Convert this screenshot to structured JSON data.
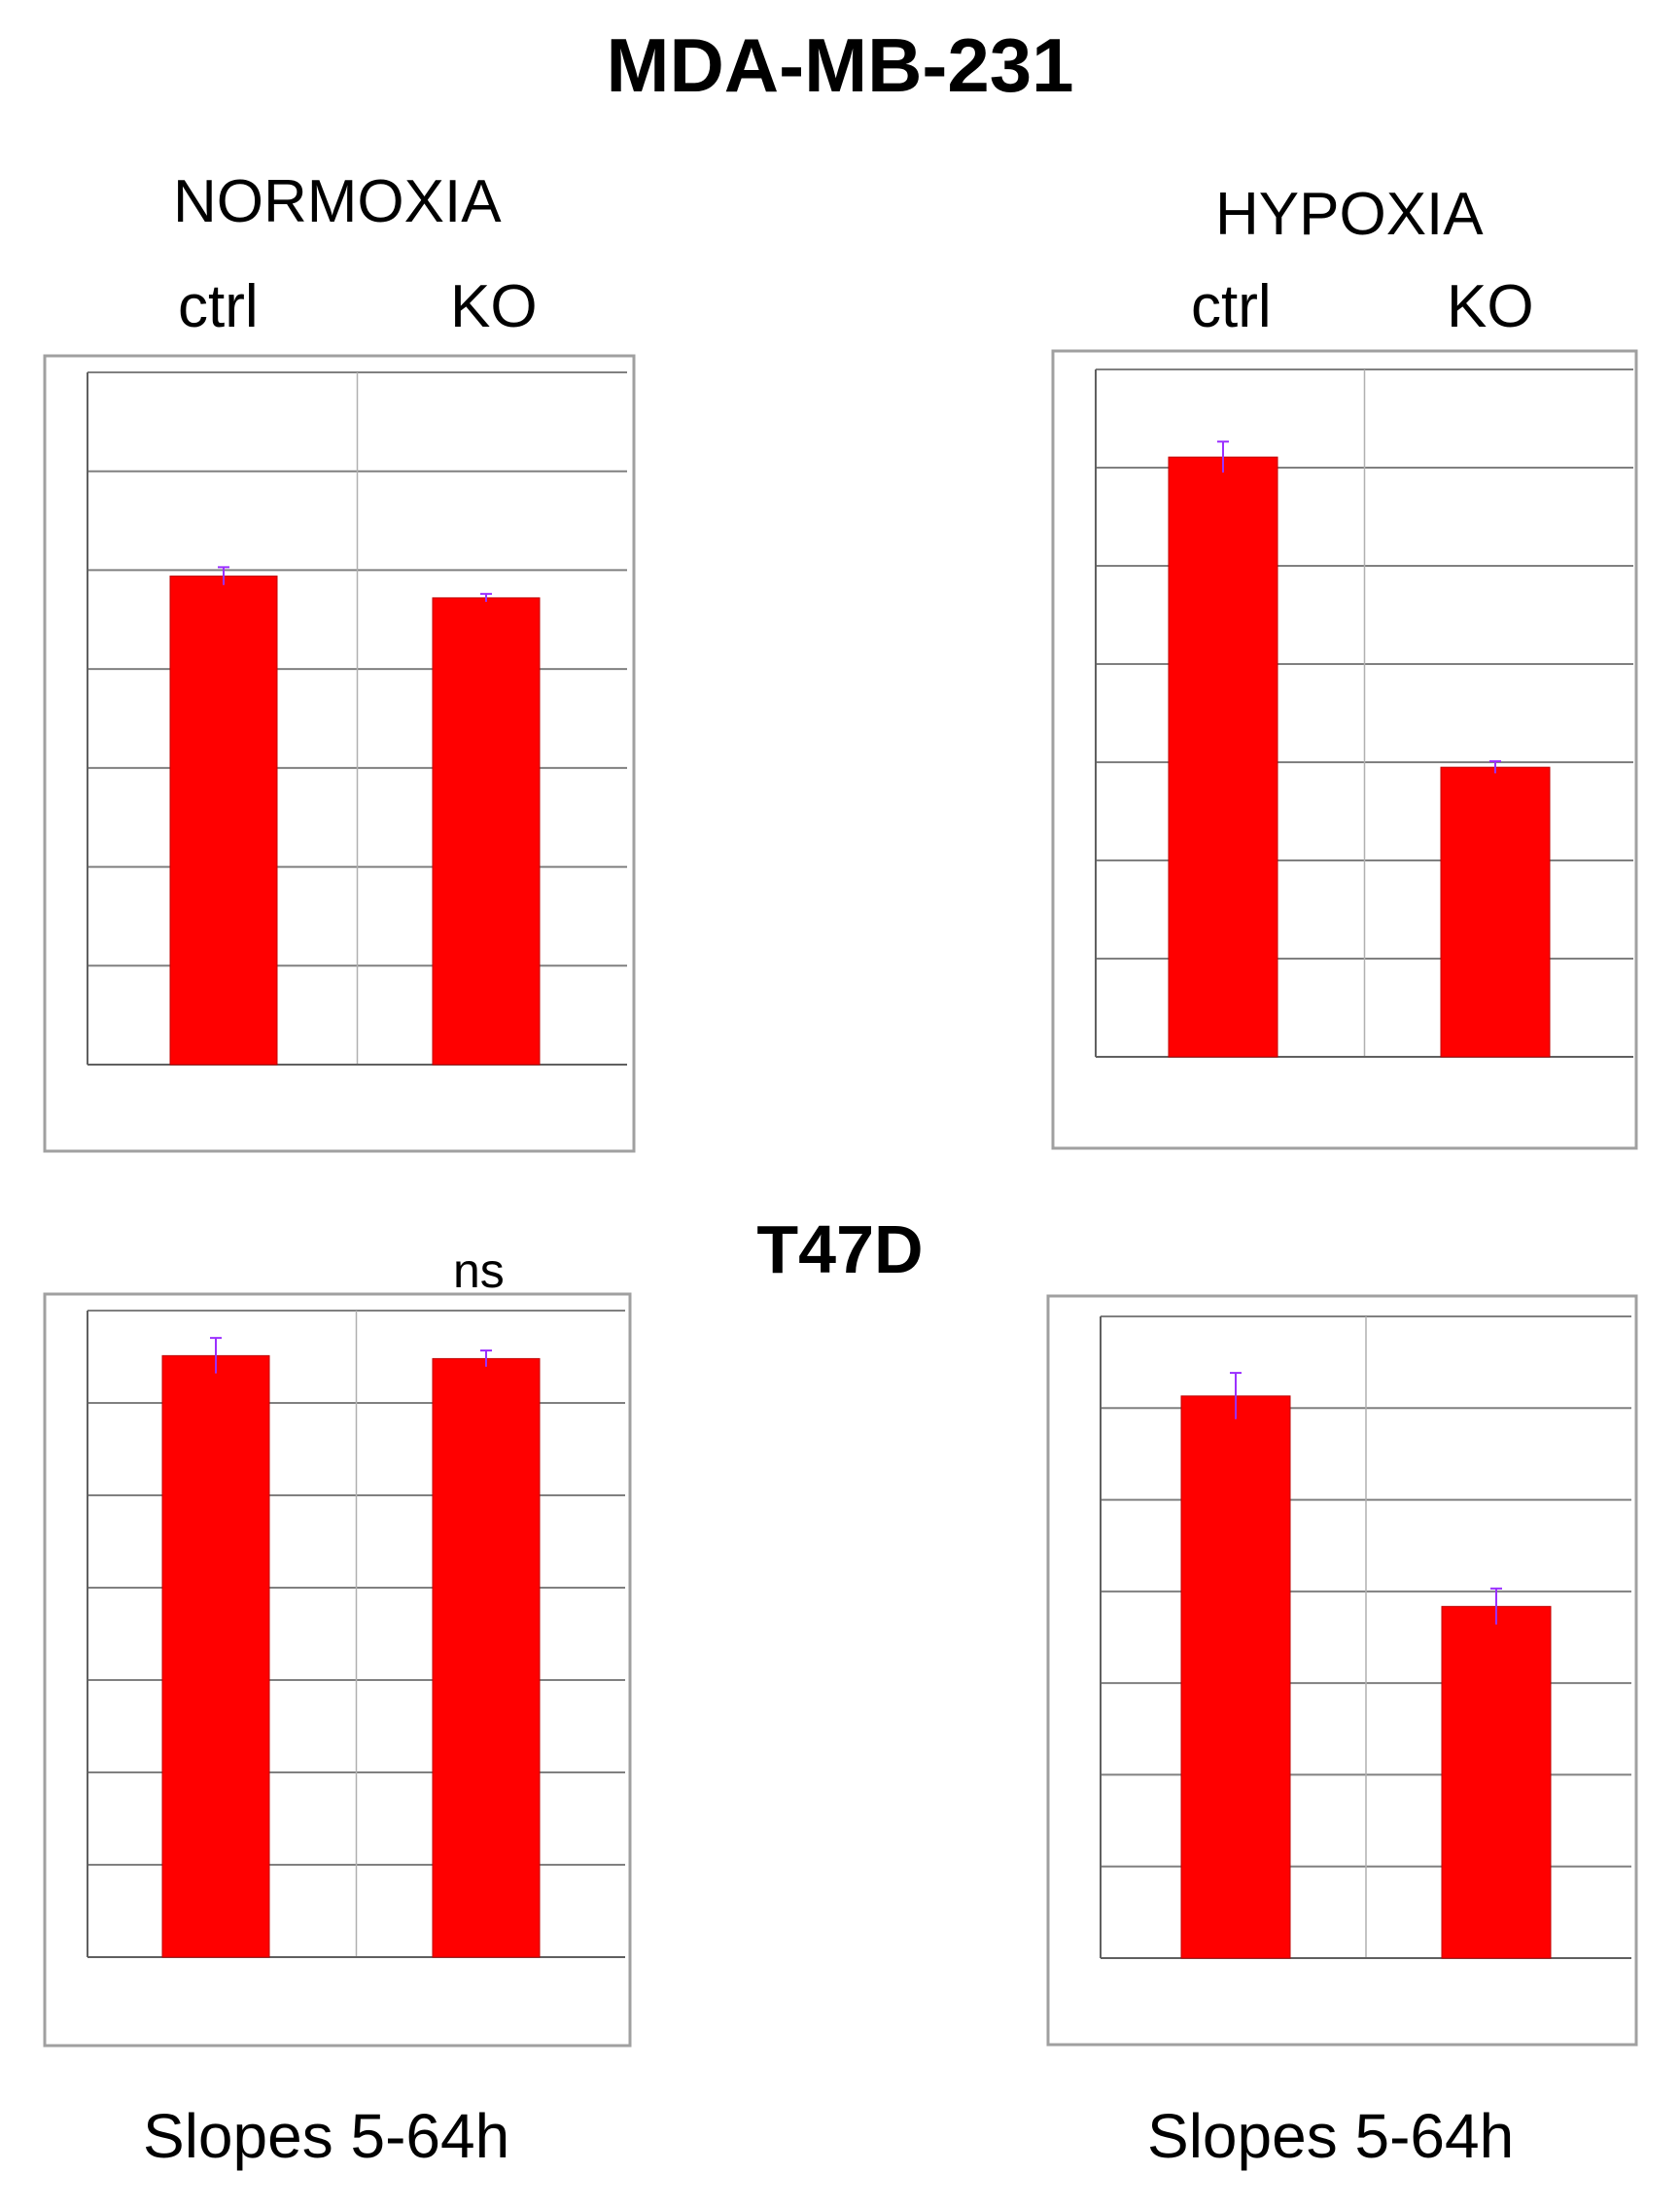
{
  "figure_title": "MDA-MB-231",
  "section_title": "T47D",
  "conditions": {
    "normoxia": "NORMOXIA",
    "hypoxia": "HYPOXIA"
  },
  "groups": {
    "ctrl": "ctrl",
    "ko": "KO"
  },
  "significance": {
    "ns": "ns",
    "p001": "***",
    "p01": "**"
  },
  "footer": {
    "left": "Slopes  5-64h",
    "right": "Slopes  5-64h"
  },
  "colors": {
    "bar": "#ff0000",
    "grid": "#808080",
    "error": "#9b30ff",
    "frame": "#a0a0a0"
  },
  "chart_data": [
    {
      "type": "bar",
      "categories": [
        "ctrl",
        "KO"
      ],
      "values": [
        0.0988,
        0.0944
      ],
      "errors": [
        0.0018,
        0.0008
      ],
      "ylim": [
        0,
        0.14
      ],
      "grid": true
    },
    {
      "type": "bar",
      "categories": [
        "ctrl",
        "KO"
      ],
      "values": [
        0.0698,
        0.0337
      ],
      "errors": [
        0.0018,
        0.0007
      ],
      "ylim": [
        0,
        0.08
      ],
      "grid": true
    },
    {
      "type": "bar",
      "categories": [
        "ctrl",
        "KO"
      ],
      "values": [
        0.0814,
        0.081
      ],
      "errors": [
        0.0024,
        0.0011
      ],
      "ylim": [
        0,
        0.0875
      ],
      "grid": true
    },
    {
      "type": "bar",
      "categories": [
        "ctrl",
        "KO"
      ],
      "values": [
        0.00438,
        0.00274
      ],
      "errors": [
        0.00018,
        0.00014
      ],
      "ylim": [
        0,
        0.005
      ],
      "grid": true
    }
  ]
}
